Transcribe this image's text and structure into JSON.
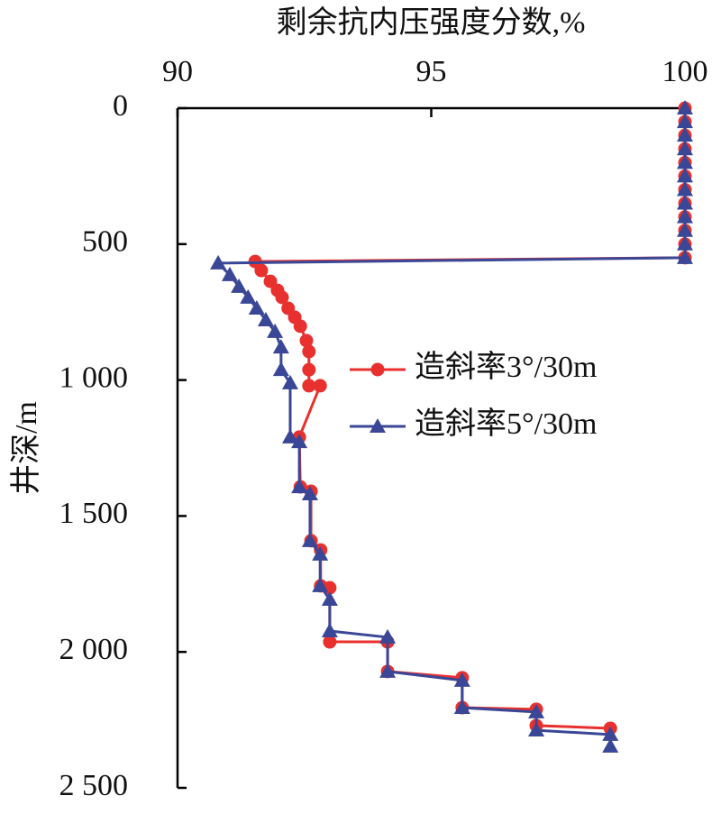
{
  "chart_data": {
    "type": "line",
    "title": "剩余抗内压强度分数,%",
    "y_label": "井深/m",
    "xlim": [
      90,
      100
    ],
    "xticks": [
      90,
      95,
      100
    ],
    "ylim": [
      0,
      2500
    ],
    "yticks": [
      0,
      500,
      {
        "value": 1000,
        "label": "1 000"
      },
      {
        "value": 1500,
        "label": "1 500"
      },
      {
        "value": 2000,
        "label": "2 000"
      },
      {
        "value": 2500,
        "label": "2 500"
      }
    ],
    "y_inverted": true,
    "legend": "right",
    "series": [
      {
        "name": "造斜率3°/30m",
        "color": "#e8312f",
        "marker": "circle",
        "x": [
          100,
          100,
          100,
          100,
          100,
          100,
          100,
          100,
          100,
          100,
          100,
          100,
          91.53,
          91.65,
          91.83,
          91.97,
          92.06,
          92.18,
          92.31,
          92.42,
          92.54,
          92.59,
          92.59,
          92.59,
          92.81,
          92.4,
          92.42,
          92.63,
          92.63,
          92.82,
          92.82,
          93.0,
          93.0,
          94.14,
          94.14,
          95.61,
          95.61,
          97.07,
          97.07,
          98.53
        ],
        "values": [
          0,
          50,
          100,
          150,
          200,
          250,
          300,
          350,
          400,
          450,
          500,
          550,
          564,
          597,
          637,
          670,
          696,
          736,
          769,
          802,
          855,
          895,
          962,
          1021,
          1021,
          1210,
          1393,
          1409,
          1591,
          1625,
          1757,
          1764,
          1963,
          1963,
          2072,
          2095,
          2205,
          2211,
          2271,
          2281
        ]
      },
      {
        "name": "造斜率5°/30m",
        "color": "#3a4796",
        "marker": "triangle",
        "x": [
          100,
          100,
          100,
          100,
          100,
          100,
          100,
          100,
          100,
          100,
          100,
          100,
          90.8,
          91.03,
          91.21,
          91.39,
          91.56,
          91.74,
          91.92,
          92.04,
          92.04,
          92.22,
          92.22,
          92.4,
          92.4,
          92.61,
          92.61,
          92.81,
          92.81,
          93.0,
          93.0,
          94.14,
          94.14,
          95.61,
          95.61,
          97.07,
          97.07,
          98.53,
          98.53
        ],
        "values": [
          0,
          50,
          100,
          150,
          200,
          250,
          300,
          350,
          400,
          450,
          500,
          550,
          570,
          613,
          656,
          696,
          736,
          779,
          822,
          879,
          962,
          1011,
          1210,
          1227,
          1393,
          1419,
          1591,
          1641,
          1757,
          1807,
          1923,
          1946,
          2072,
          2105,
          2205,
          2221,
          2288,
          2304,
          2347
        ]
      }
    ]
  }
}
